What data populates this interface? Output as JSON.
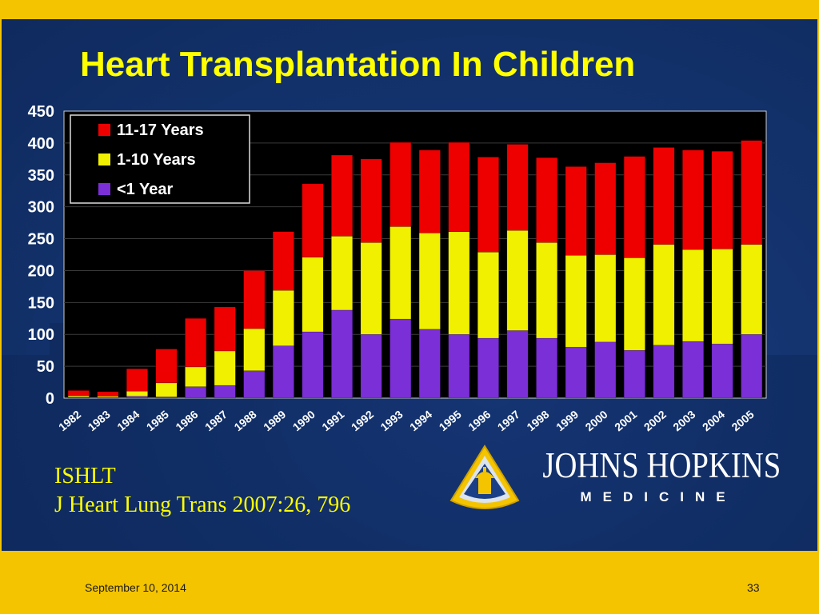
{
  "title": "Heart Transplantation In Children",
  "caption": {
    "line1": "ISHLT",
    "line2": "J Heart Lung Trans 2007:26, 796"
  },
  "logo": {
    "name": "JOHNS HOPKINS",
    "sub": "MEDICINE"
  },
  "footer": {
    "date": "September 10, 2014",
    "page": "33"
  },
  "colors": {
    "title": "#ffff00",
    "background": "#143470",
    "frame": "#f5c400",
    "plot_bg": "#000000"
  },
  "chart_data": {
    "type": "bar",
    "stacked": true,
    "categories": [
      "1982",
      "1983",
      "1984",
      "1985",
      "1986",
      "1987",
      "1988",
      "1989",
      "1990",
      "1991",
      "1992",
      "1993",
      "1994",
      "1995",
      "1996",
      "1997",
      "1998",
      "1999",
      "2000",
      "2001",
      "2002",
      "2003",
      "2004",
      "2005"
    ],
    "series": [
      {
        "name": "<1 Year",
        "color": "#7b2fd6",
        "values": [
          2,
          1,
          3,
          2,
          18,
          20,
          43,
          82,
          104,
          138,
          100,
          124,
          108,
          100,
          94,
          106,
          94,
          80,
          88,
          75,
          83,
          89,
          85,
          100
        ]
      },
      {
        "name": "1-10 Years",
        "color": "#f0f000",
        "values": [
          2,
          2,
          8,
          22,
          31,
          54,
          66,
          87,
          117,
          116,
          144,
          145,
          151,
          161,
          135,
          157,
          150,
          144,
          137,
          145,
          158,
          144,
          149,
          141
        ]
      },
      {
        "name": "11-17 Years",
        "color": "#ee0000",
        "values": [
          8,
          7,
          35,
          53,
          76,
          69,
          91,
          92,
          115,
          127,
          131,
          132,
          130,
          140,
          149,
          135,
          133,
          139,
          144,
          159,
          152,
          156,
          153,
          163
        ]
      }
    ],
    "yticks": [
      0,
      50,
      100,
      150,
      200,
      250,
      300,
      350,
      400,
      450
    ],
    "ylim": [
      0,
      450
    ],
    "grid": true,
    "legend": {
      "position": "top-left",
      "entries": [
        "11-17 Years",
        "1-10 Years",
        "<1 Year"
      ]
    }
  }
}
